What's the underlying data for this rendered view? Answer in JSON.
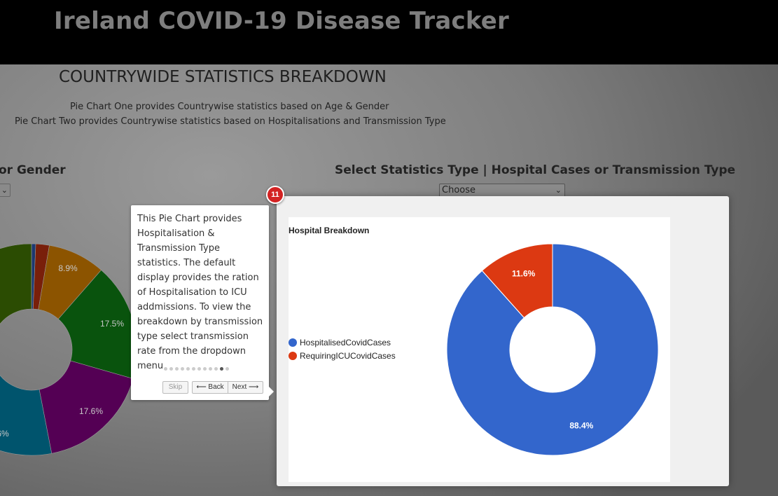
{
  "header": {
    "title": "Ireland COVID-19 Disease Tracker"
  },
  "section": {
    "heading": "COUNTRYWIDE STATISTICS BREAKDOWN",
    "desc_line1": "Pie Chart One provides Countrywise statistics based on Age & Gender",
    "desc_line2": "Pie Chart Two provides Countrywise statistics based on Hospitalisations and Transmission Type"
  },
  "left_panel": {
    "heading_visible": "or Gender",
    "select_icon": "chevron-down-icon",
    "slice_labels": [
      "8.9%",
      "17.5%",
      "17.6%",
      "6%"
    ],
    "slice_colors": [
      "#3366cc",
      "#dc3912",
      "#ff9900",
      "#109618",
      "#990099",
      "#0099c6",
      "#4e8a04"
    ]
  },
  "right_panel": {
    "heading": "Select Statistics Type | Hospital Cases or Transmission Type",
    "select_value": "Choose",
    "select_icon": "chevron-down-icon"
  },
  "tour": {
    "step_number": "11",
    "text": "This Pie Chart provides Hospitalisation & Transmission Type statistics. The default display provides the ration of Hospitalisation to ICU addmissions. To view the breakdown by transmission type select transmission rate from the dropdown menu",
    "skip_label": "Skip",
    "back_label": "⟵ Back",
    "next_label": "Next ⟶",
    "total_steps": 12,
    "current_step": 11
  },
  "chart_data": {
    "type": "pie",
    "title": "Hospital Breakdown",
    "labels": [
      "HospitalisedCovidCases",
      "RequiringICUCovidCases"
    ],
    "values": [
      88.4,
      11.6
    ],
    "value_labels": [
      "88.4%",
      "11.6%"
    ],
    "colors": [
      "#3366cc",
      "#dc3912"
    ],
    "donut": true,
    "legend": "left"
  }
}
